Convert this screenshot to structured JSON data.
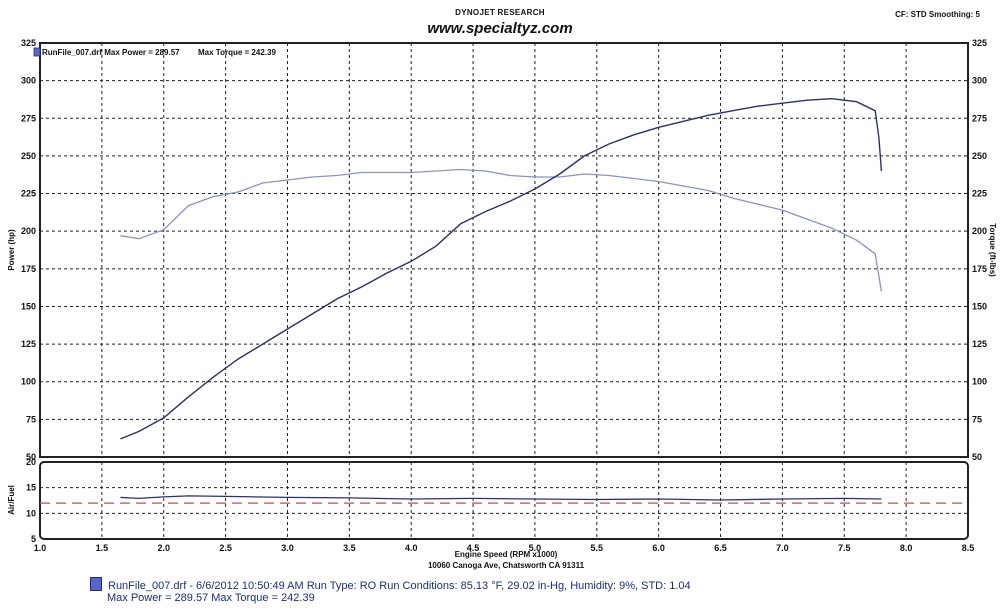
{
  "header": {
    "title": "DYNOJET RESEARCH",
    "website": "www.specialtyz.com",
    "settings": "CF: STD  Smoothing: 5"
  },
  "legend": {
    "run": "RunFile_007.drf Max Power = 289.57",
    "torque": "Max Torque = 242.39"
  },
  "footer": {
    "line1": "RunFile_007.drf - 6/6/2012 10:50:49 AM  Run Type: RO  Run Conditions: 85.13 °F, 29.02 in-Hg,  Humidity:  9%, STD: 1.04",
    "line2": "Max Power = 289.57  Max Torque = 242.39"
  },
  "colors": {
    "power": "#2a3170",
    "torque": "#8a93c8",
    "afr": "#2a3170",
    "afr_target": "#d04848",
    "grid": "#222222"
  },
  "chart_data": [
    {
      "type": "line",
      "xlabel": "Engine Speed (RPM x1000)",
      "xsubtitle": "10060 Canoga Ave, Chatsworth CA 91311",
      "ylabel": "Power (hp)",
      "y2label": "Torque (ft-lbs)",
      "xlim": [
        1.0,
        8.5
      ],
      "ylim": [
        50,
        325
      ],
      "x_ticks": [
        "1.0",
        "1.5",
        "2.0",
        "2.5",
        "3.0",
        "3.5",
        "4.0",
        "4.5",
        "5.0",
        "5.5",
        "6.0",
        "6.5",
        "7.0",
        "7.5",
        "8.0",
        "8.5"
      ],
      "y_ticks": [
        "50",
        "75",
        "100",
        "125",
        "150",
        "175",
        "200",
        "225",
        "250",
        "275",
        "300",
        "325"
      ],
      "grid": true,
      "series": [
        {
          "name": "Power",
          "x": [
            1.65,
            1.8,
            2.0,
            2.2,
            2.4,
            2.6,
            2.8,
            3.0,
            3.2,
            3.4,
            3.6,
            3.8,
            4.0,
            4.2,
            4.4,
            4.6,
            4.8,
            5.0,
            5.2,
            5.4,
            5.6,
            5.8,
            6.0,
            6.2,
            6.4,
            6.6,
            6.8,
            7.0,
            7.2,
            7.4,
            7.6,
            7.75,
            7.78,
            7.8
          ],
          "values": [
            62,
            67,
            76,
            90,
            103,
            115,
            125,
            135,
            145,
            155,
            163,
            172,
            180,
            190,
            205,
            213,
            220,
            228,
            238,
            250,
            258,
            264,
            269,
            273,
            277,
            280,
            283,
            285,
            287,
            288,
            286,
            280,
            262,
            240
          ]
        },
        {
          "name": "Torque",
          "x": [
            1.65,
            1.8,
            2.0,
            2.2,
            2.4,
            2.6,
            2.8,
            3.0,
            3.2,
            3.4,
            3.6,
            3.8,
            4.0,
            4.2,
            4.4,
            4.6,
            4.8,
            5.0,
            5.2,
            5.4,
            5.6,
            5.8,
            6.0,
            6.2,
            6.4,
            6.6,
            6.8,
            7.0,
            7.2,
            7.4,
            7.6,
            7.75,
            7.8
          ],
          "values": [
            197,
            195,
            201,
            217,
            223,
            226,
            232,
            234,
            236,
            237,
            239,
            239,
            239,
            240,
            241,
            240,
            237,
            236,
            236,
            238,
            237,
            235,
            233,
            230,
            227,
            222,
            218,
            214,
            208,
            202,
            194,
            185,
            160
          ]
        }
      ]
    },
    {
      "type": "line",
      "ylabel": "Air/Fuel",
      "xlim": [
        1.0,
        8.5
      ],
      "ylim": [
        5,
        20
      ],
      "y_ticks": [
        "5",
        "10",
        "15",
        "20"
      ],
      "grid": true,
      "series": [
        {
          "name": "Air/Fuel",
          "x": [
            1.65,
            1.8,
            2.0,
            2.2,
            2.5,
            3.0,
            3.5,
            4.0,
            4.5,
            5.0,
            5.5,
            6.0,
            6.5,
            7.0,
            7.5,
            7.8
          ],
          "values": [
            13.1,
            12.9,
            13.2,
            13.4,
            13.3,
            13.1,
            13.0,
            12.8,
            12.9,
            12.8,
            12.7,
            12.8,
            12.6,
            12.8,
            12.9,
            12.8
          ]
        },
        {
          "name": "Target",
          "x": [
            1.0,
            8.5
          ],
          "values": [
            12.0,
            12.0
          ]
        }
      ]
    }
  ]
}
